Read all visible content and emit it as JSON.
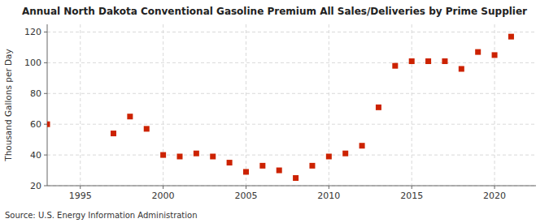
{
  "chart_data": {
    "type": "scatter",
    "title": "Annual North Dakota Conventional Gasoline Premium All Sales/Deliveries by Prime Supplier",
    "ylabel": "Thousand Gallons per Day",
    "source": "Source: U.S. Energy Information Administration",
    "color": "#cc2200",
    "marker": "square",
    "grid": true,
    "xlim": [
      1993.0,
      2022.5
    ],
    "ylim": [
      20,
      125
    ],
    "xticks": [
      1995,
      2000,
      2005,
      2010,
      2015,
      2020
    ],
    "yticks": [
      20,
      40,
      60,
      80,
      100,
      120
    ],
    "x": [
      1993,
      1997,
      1998,
      1999,
      2000,
      2001,
      2002,
      2003,
      2004,
      2005,
      2006,
      2007,
      2008,
      2009,
      2010,
      2011,
      2012,
      2013,
      2014,
      2015,
      2016,
      2017,
      2018,
      2019,
      2020,
      2021
    ],
    "values": [
      60,
      54,
      65,
      57,
      40,
      39,
      41,
      39,
      35,
      29,
      33,
      30,
      25,
      33,
      39,
      41,
      46,
      71,
      98,
      101,
      101,
      101,
      96,
      107,
      105,
      117
    ]
  }
}
